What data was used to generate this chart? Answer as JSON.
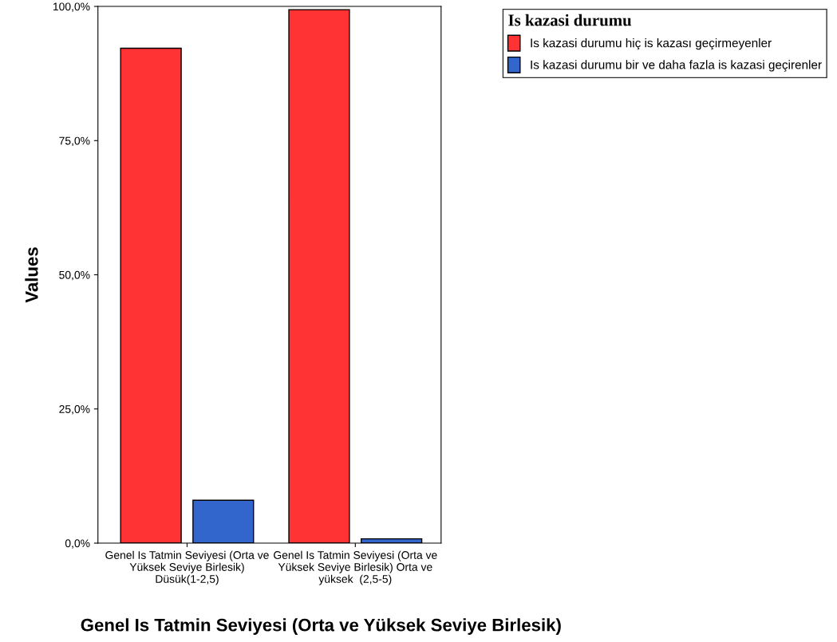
{
  "chart_data": {
    "type": "bar",
    "xlabel": "Genel Is Tatmin Seviyesi (Orta ve Yüksek Seviye Birlesik)",
    "ylabel": "Values",
    "legend_title": "Is kazasi durumu",
    "categories": [
      "Genel Is Tatmin Seviyesi (Orta ve Yüksek Seviye Birlesik) Düsük(1-2,5)",
      "Genel Is Tatmin Seviyesi (Orta ve Yüksek Seviye Birlesik) Orta ve yüksek  (2,5-5)"
    ],
    "series": [
      {
        "name": "Is kazasi durumu hiç is kazası geçirmeyenler",
        "color": "#ff3333",
        "values": [
          92.2,
          99.4
        ]
      },
      {
        "name": "Is kazasi durumu bir ve daha fazla is kazasi geçirenler",
        "color": "#3366cc",
        "values": [
          8.0,
          0.8
        ]
      }
    ],
    "ylim": [
      0,
      100
    ],
    "yticks": [
      {
        "value": 0,
        "label": "0,0%"
      },
      {
        "value": 25,
        "label": "25,0%"
      },
      {
        "value": 50,
        "label": "50,0%"
      },
      {
        "value": 75,
        "label": "75,0%"
      },
      {
        "value": 100,
        "label": "100,0%"
      }
    ],
    "legend": "top right",
    "grid": false
  }
}
